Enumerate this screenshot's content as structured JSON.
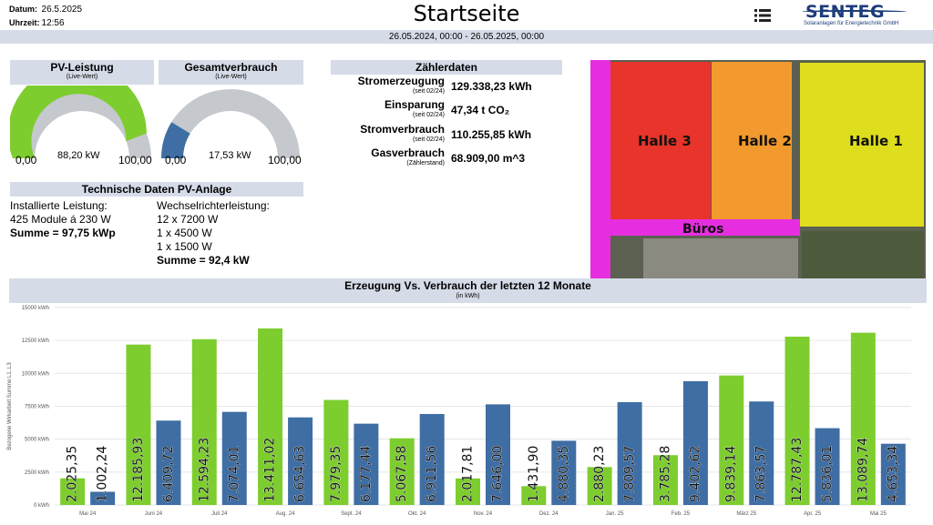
{
  "header": {
    "date_label": "Datum:",
    "date_value": "26.5.2025",
    "time_label": "Uhrzeit:",
    "time_value": "12:56",
    "title": "Startseite",
    "logo_main": "SENTEG",
    "logo_sub": "Solaranlagen für Energietechnik GmbH",
    "menu_icon": "hamburger-menu-icon"
  },
  "range": "26.05.2024, 00:00 - 26.05.2025, 00:00",
  "pv_gauge": {
    "title": "PV-Leistung",
    "subtitle": "(Live-Wert)",
    "min": "0,00",
    "max": "100,00",
    "value_text": "88,20 kW",
    "fraction": 0.882,
    "color": "#7dcd2f"
  },
  "consumption_gauge": {
    "title": "Gesamtverbrauch",
    "subtitle": "(Live-Wert)",
    "min": "0,00",
    "max": "100,00",
    "value_text": "17,53 kW",
    "fraction": 0.1753,
    "color": "#3f6ea4"
  },
  "tech": {
    "title": "Technische Daten PV-Anlage",
    "installed_label": "Installierte Leistung:",
    "installed_modules": "425 Module á 230 W",
    "installed_sum": "Summe = 97,75 kWp",
    "inverter_label": "Wechselrichterleistung:",
    "inverter_lines": [
      "12 x 7200 W",
      "1 x 4500 W",
      "1 x 1500 W"
    ],
    "inverter_sum": "Summe = 92,4 kW"
  },
  "meters": {
    "title": "Zählerdaten",
    "rows": [
      {
        "label": "Stromerzeugung",
        "sub": "(seit 02/24)",
        "value": "129.338,23 kWh"
      },
      {
        "label": "Einsparung",
        "sub": "(seit 02/24)",
        "value": "47,34 t CO₂"
      },
      {
        "label": "Stromverbrauch",
        "sub": "(seit 02/24)",
        "value": "110.255,85 kWh"
      },
      {
        "label": "Gasverbrauch",
        "sub": "(Zählerstand)",
        "value": "68.909,00 m^3"
      }
    ]
  },
  "aerial": {
    "labels": [
      "Halle 3",
      "Halle 2",
      "Halle 1",
      "Büros"
    ],
    "colors": {
      "halle3": "#e8342a",
      "halle2": "#f29a2e",
      "halle1": "#dede1c",
      "bueros": "#e62ee0"
    }
  },
  "chart_title": "Erzeugung Vs. Verbrauch der letzten 12 Monate",
  "chart_subtitle": "(in kWh)",
  "chart_data": {
    "type": "bar",
    "ylabel": "Bezogene Wirkarbeit Summe L1..L3",
    "ylim": [
      0,
      15000
    ],
    "yticks": [
      "0 kWh",
      "2500 kWh",
      "5000 kWh",
      "7500 kWh",
      "10000 kWh",
      "12500 kWh",
      "15000 kWh"
    ],
    "categories": [
      "Mai 24",
      "Juni 24",
      "Juli 24",
      "Aug. 24",
      "Sept. 24",
      "Okt. 24",
      "Nov. 24",
      "Dez. 24",
      "Jan. 25",
      "Feb. 25",
      "März 25",
      "Apr. 25",
      "Mai 25"
    ],
    "series": [
      {
        "color": "#7dcd2f",
        "values": [
          2025.35,
          12185.93,
          12594.23,
          13411.02,
          7979.35,
          5067.58,
          2017.81,
          1431.9,
          2880.23,
          3785.28,
          9839.14,
          12787.43,
          13089.74
        ],
        "labels": [
          "2.025,35",
          "12.185,93",
          "12.594,23",
          "13.411,02",
          "7.979,35",
          "5.067,58",
          "2.017,81",
          "1.431,90",
          "2.880,23",
          "3.785,28",
          "9.839,14",
          "12.787,43",
          "13.089,74"
        ]
      },
      {
        "color": "#3f6ea4",
        "values": [
          1002.24,
          6409.72,
          7074.01,
          6654.63,
          6177.44,
          6911.56,
          7646.0,
          4880.35,
          7809.57,
          9402.62,
          7863.57,
          5836.01,
          4653.34
        ],
        "labels": [
          "1.002,24",
          "6.409,72",
          "7.074,01",
          "6.654,63",
          "6.177,44",
          "6.911,56",
          "7.646,00",
          "4.880,35",
          "7.809,57",
          "9.402,62",
          "7.863,57",
          "5.836,01",
          "4.653,34"
        ]
      }
    ]
  }
}
